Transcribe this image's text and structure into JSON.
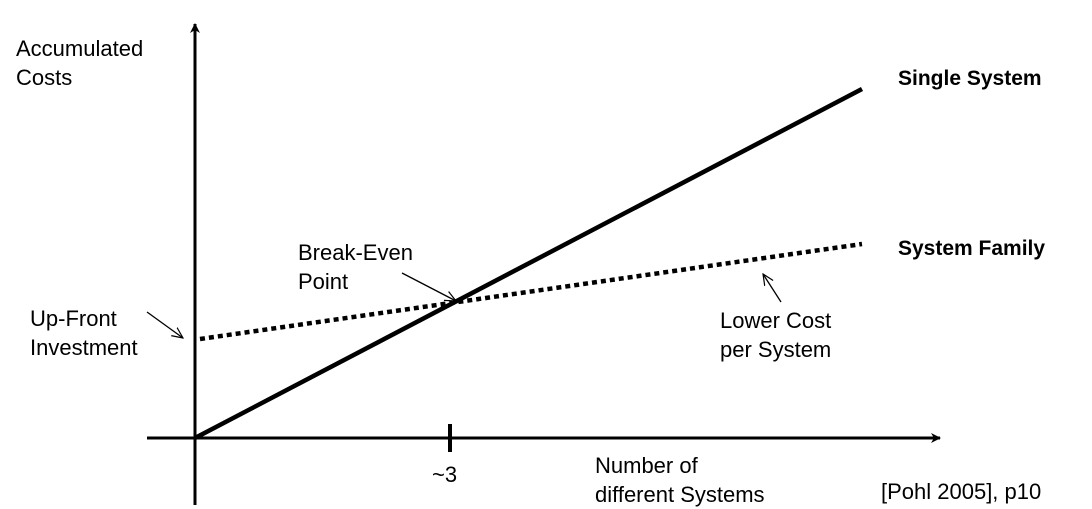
{
  "y_axis_label": [
    "Accumulated",
    "Costs"
  ],
  "x_axis_label": [
    "Number of",
    "different Systems"
  ],
  "x_tick_label": "~3",
  "series": {
    "single_system": "Single System",
    "system_family": "System Family"
  },
  "annotations": {
    "break_even": [
      "Break-Even",
      "Point"
    ],
    "up_front": [
      "Up-Front",
      "Investment"
    ],
    "lower_cost": [
      "Lower Cost",
      "per System"
    ]
  },
  "citation": "[Pohl 2005], p10",
  "colors": {
    "ink": "#000000",
    "background": "#ffffff"
  }
}
